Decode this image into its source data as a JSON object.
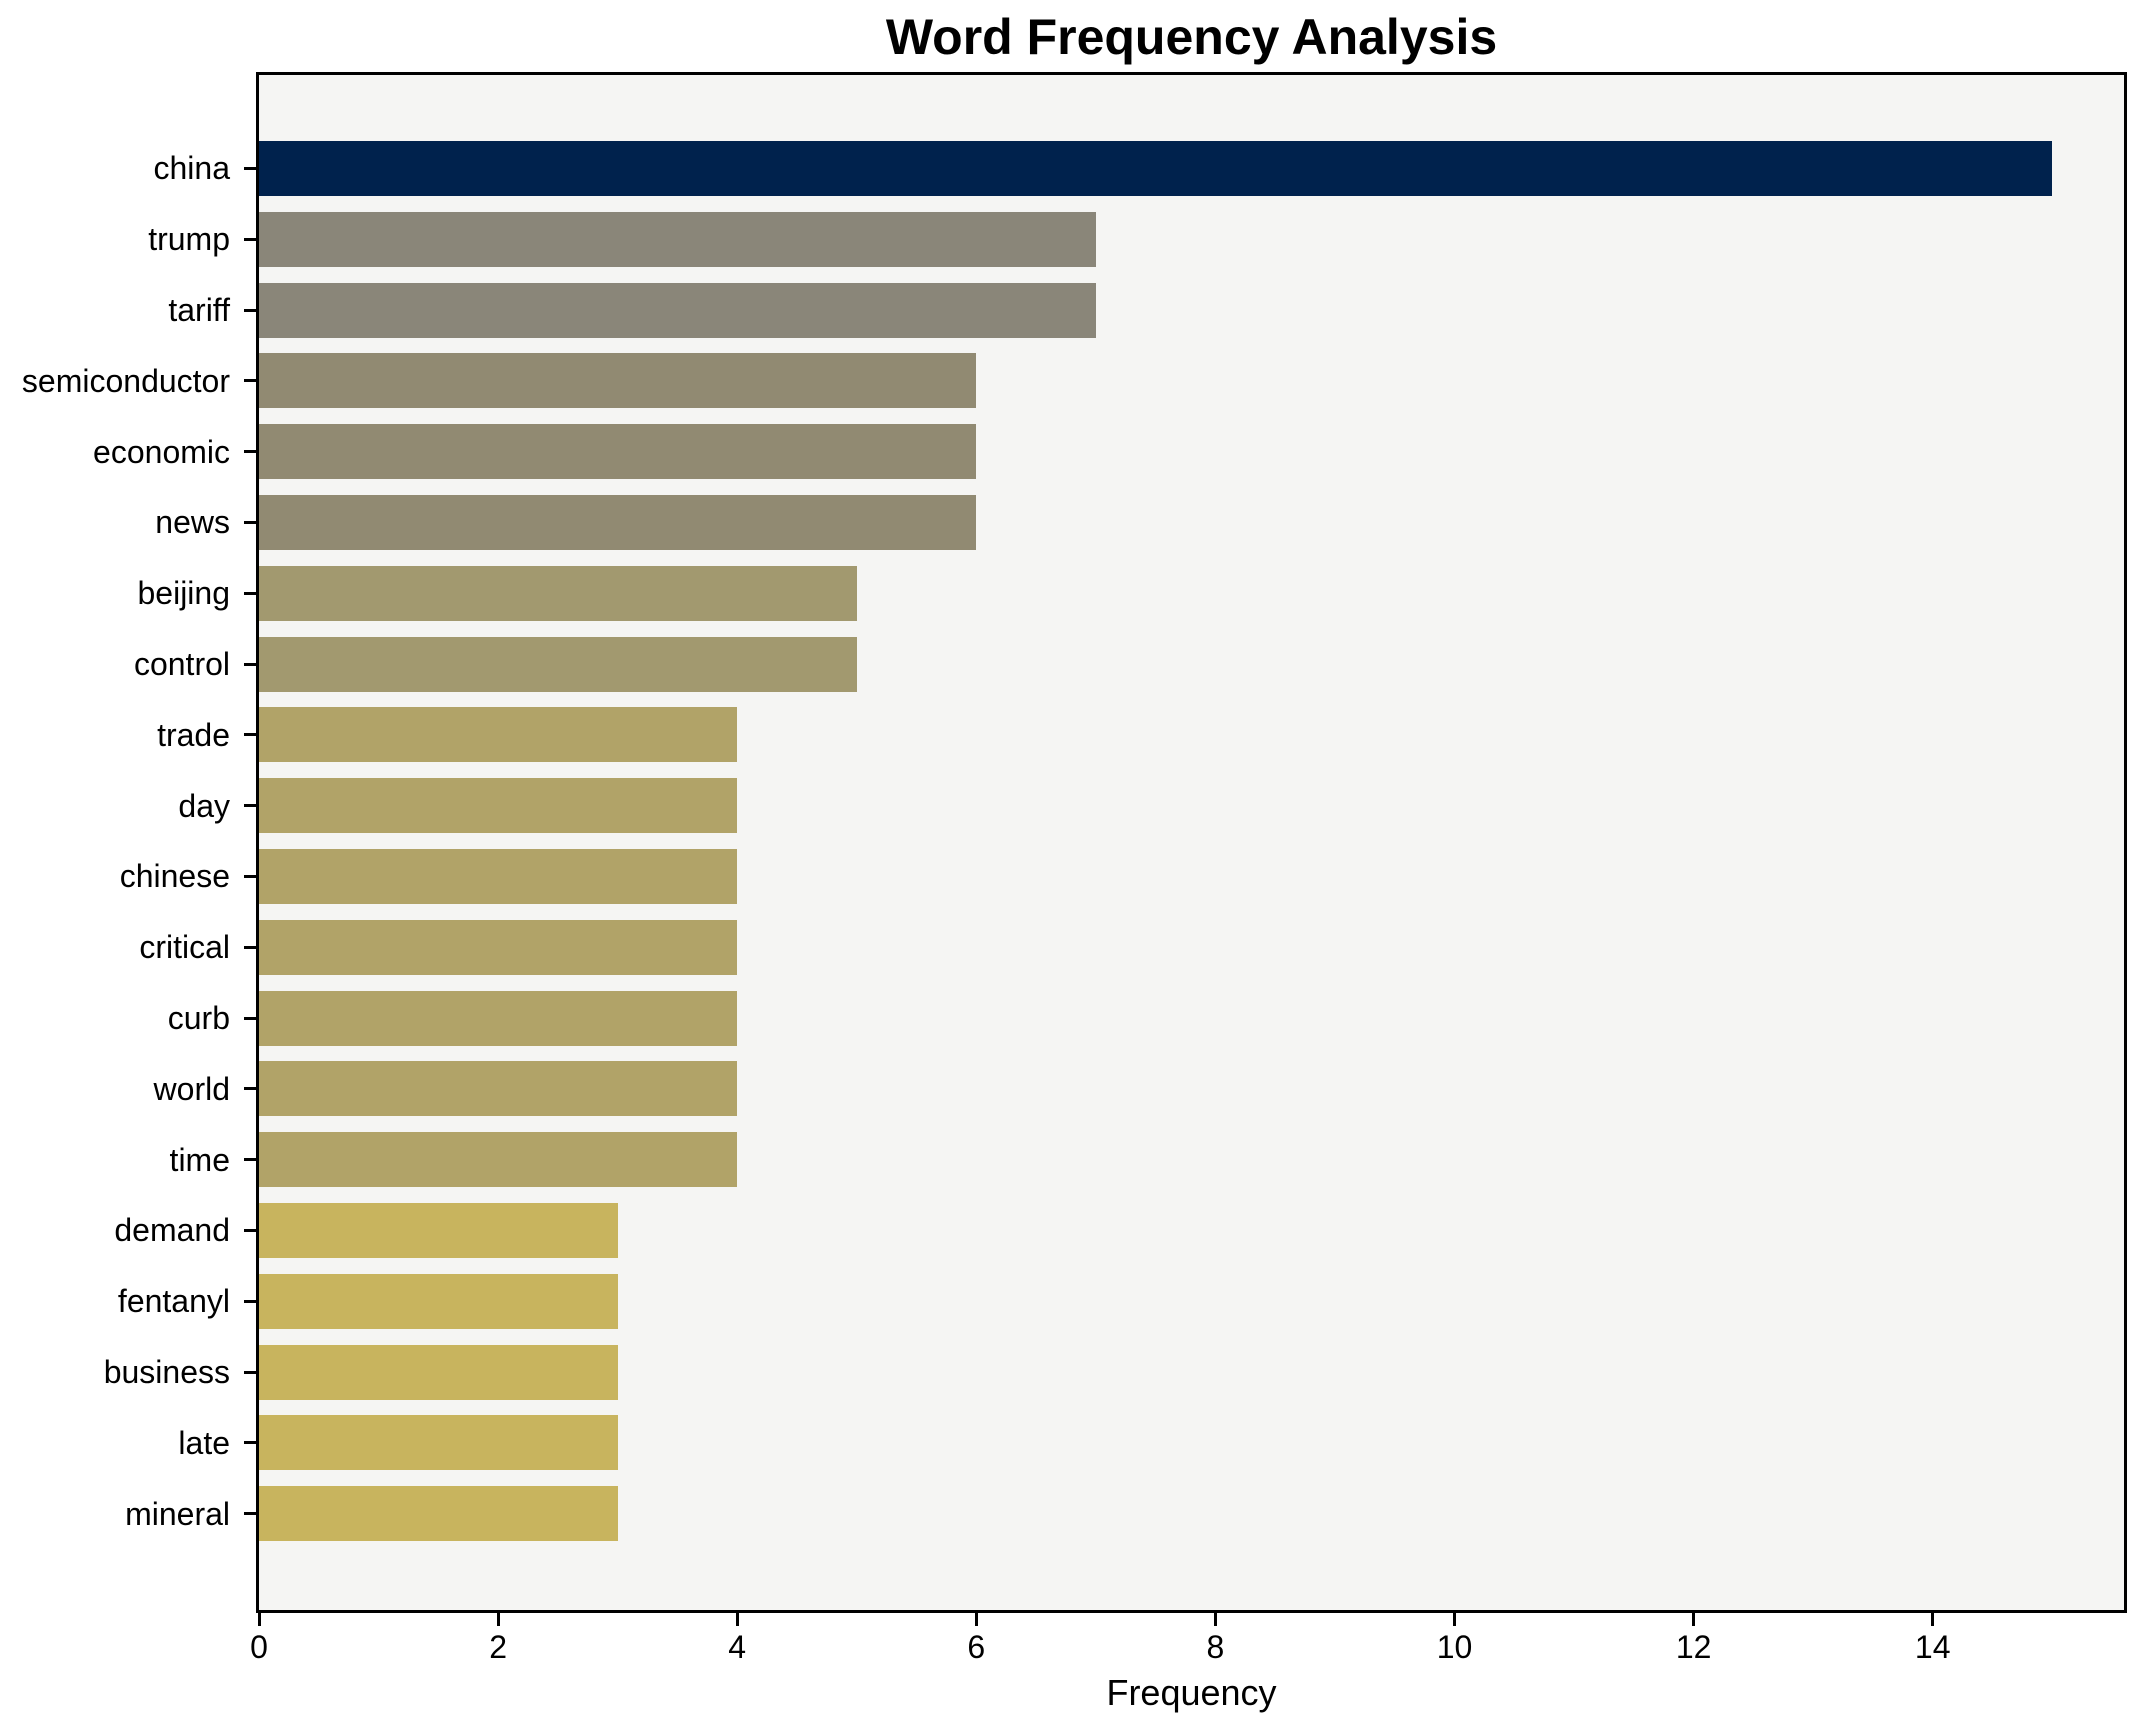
{
  "chart_data": {
    "type": "bar",
    "orientation": "horizontal",
    "title": "Word Frequency Analysis",
    "xlabel": "Frequency",
    "ylabel": "",
    "categories": [
      "china",
      "trump",
      "tariff",
      "semiconductor",
      "economic",
      "news",
      "beijing",
      "control",
      "trade",
      "day",
      "chinese",
      "critical",
      "curb",
      "world",
      "time",
      "demand",
      "fentanyl",
      "business",
      "late",
      "mineral"
    ],
    "values": [
      15,
      7,
      7,
      6,
      6,
      6,
      5,
      5,
      4,
      4,
      4,
      4,
      4,
      4,
      4,
      3,
      3,
      3,
      3,
      3
    ],
    "bar_colors": [
      "#00224d",
      "#8a8679",
      "#8a8679",
      "#918a72",
      "#918a72",
      "#918a72",
      "#a2996f",
      "#a2996f",
      "#b1a368",
      "#b1a368",
      "#b1a368",
      "#b1a368",
      "#b1a368",
      "#b1a368",
      "#b1a368",
      "#c8b45e",
      "#c8b45e",
      "#c8b45e",
      "#c8b45e",
      "#c8b45e"
    ],
    "x_ticks": [
      0,
      2,
      4,
      6,
      8,
      10,
      12,
      14
    ],
    "xlim": [
      0,
      15.6
    ],
    "grid": false,
    "legend": null,
    "plot_background": "#f5f5f3",
    "figure_background": "#ffffff",
    "spine_color": "#000000"
  }
}
